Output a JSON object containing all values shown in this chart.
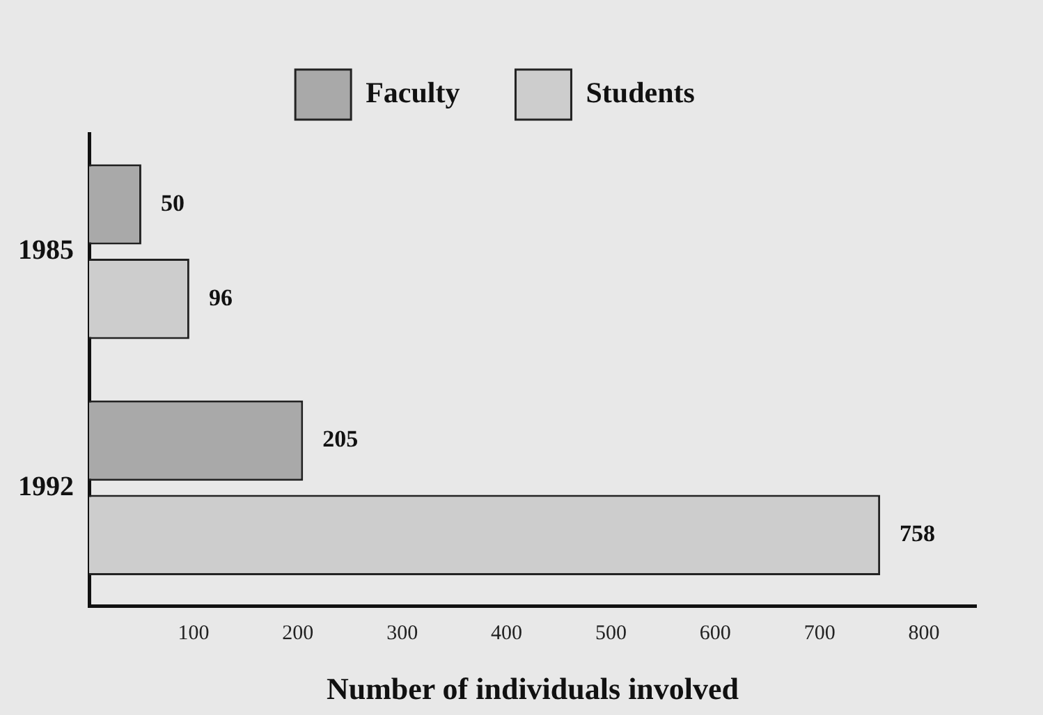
{
  "chart_data": {
    "type": "bar",
    "orientation": "horizontal",
    "xlabel": "Number of individuals involved",
    "categories": [
      "1985",
      "1992"
    ],
    "series": [
      {
        "name": "Faculty",
        "color": "#a9a9a9",
        "values": [
          50,
          205
        ]
      },
      {
        "name": "Students",
        "color": "#cdcdcd",
        "values": [
          96,
          758
        ]
      }
    ],
    "xlim": [
      0,
      850
    ],
    "xticks": [
      100,
      200,
      300,
      400,
      500,
      600,
      700,
      800
    ],
    "grid": false,
    "legend": "top",
    "data_labels": true
  }
}
